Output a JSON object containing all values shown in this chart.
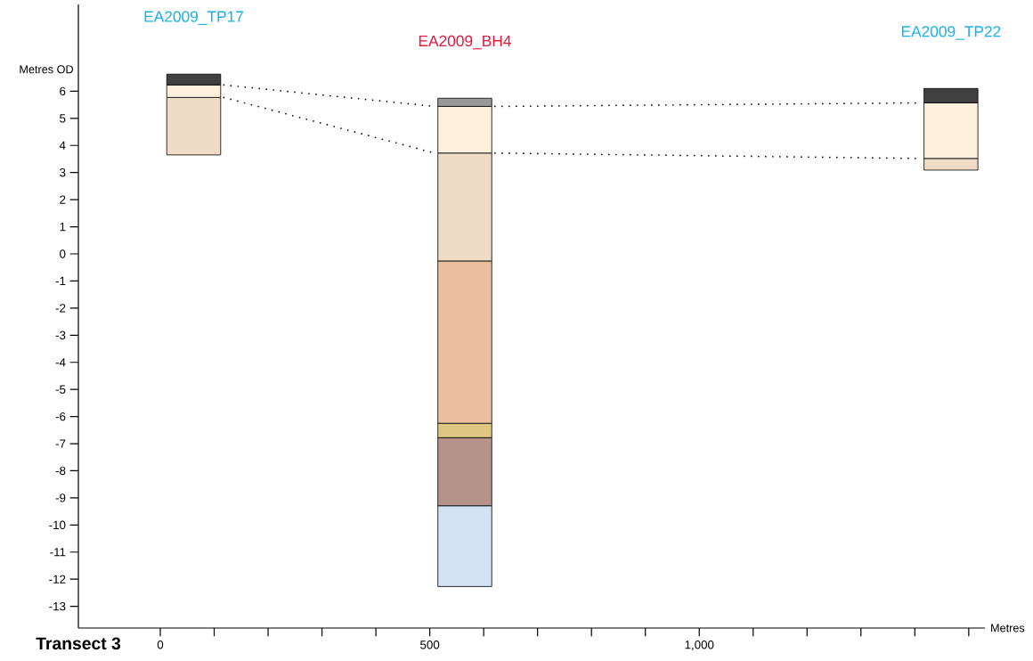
{
  "chart_data": {
    "type": "bar",
    "title": "Transect 3",
    "xlabel": "Metres",
    "ylabel": "Metres OD",
    "series": [
      {
        "color": "#d3e3f3",
        "x": [
          565
        ],
        "base": [
          -12.27
        ],
        "values": [
          2.98
        ]
      },
      {
        "color": "#b5938a",
        "x": [
          565
        ],
        "base": [
          -9.29
        ],
        "values": [
          2.51
        ]
      },
      {
        "color": "#dfc782",
        "x": [
          565
        ],
        "base": [
          -6.78
        ],
        "values": [
          0.53
        ]
      },
      {
        "color": "#e9bf9f",
        "x": [
          565
        ],
        "base": [
          -6.25
        ],
        "values": [
          5.99
        ]
      },
      {
        "color": "#eedcc7",
        "x": [
          62,
          565,
          1467
        ],
        "base": [
          3.65,
          -0.26,
          3.09
        ],
        "values": [
          2.12,
          3.98,
          0.43
        ]
      },
      {
        "color": "#fdf0dc",
        "x": [
          62,
          565,
          1467
        ],
        "base": [
          5.77,
          3.72,
          3.52
        ],
        "values": [
          0.46,
          1.72,
          2.05
        ]
      },
      {
        "color": "#999999",
        "x": [
          565
        ],
        "base": [
          5.44
        ],
        "values": [
          0.3
        ]
      },
      {
        "color": "#404040",
        "x": [
          62,
          1467
        ],
        "base": [
          6.23,
          5.57
        ],
        "values": [
          0.4,
          0.53
        ]
      },
      {
        "type": "line",
        "color": "#000000",
        "line_style": "dotted",
        "x": [
          118,
          509
        ],
        "values": [
          6.23,
          5.44
        ]
      },
      {
        "type": "line",
        "color": "#000000",
        "line_style": "dotted",
        "x": [
          621,
          1411
        ],
        "values": [
          5.44,
          5.57
        ]
      },
      {
        "type": "line",
        "color": "#000000",
        "line_style": "dotted",
        "x": [
          118,
          509
        ],
        "values": [
          5.77,
          3.72
        ]
      },
      {
        "type": "line",
        "color": "#000000",
        "line_style": "dotted",
        "x": [
          621,
          1411
        ],
        "values": [
          3.72,
          3.52
        ]
      }
    ],
    "annotations": [
      "EA2009_TP17",
      "EA2009_BH4",
      "EA2009_TP22"
    ],
    "xlim": [
      -152,
      1530
    ],
    "ylim": [
      -13.8,
      9.2
    ],
    "xticks": [
      0,
      {
        "value": 100,
        "label": null
      },
      {
        "value": 200,
        "label": null
      },
      {
        "value": 300,
        "label": null
      },
      {
        "value": 400,
        "label": null
      },
      500,
      {
        "value": 600,
        "label": null
      },
      {
        "value": 700,
        "label": null
      },
      {
        "value": 800,
        "label": null
      },
      {
        "value": 900,
        "label": null
      },
      {
        "value": 1000,
        "label": "1,000"
      },
      {
        "value": 1100,
        "label": null
      },
      {
        "value": 1200,
        "label": null
      },
      {
        "value": 1300,
        "label": null
      },
      {
        "value": 1400,
        "label": null
      },
      {
        "value": 1500,
        "label": null
      }
    ],
    "yticks": [
      -13,
      -12,
      -11,
      -10,
      -9,
      -8,
      -7,
      -6,
      -5,
      -4,
      -3,
      -2,
      -1,
      0,
      1,
      2,
      3,
      4,
      5,
      6
    ]
  }
}
